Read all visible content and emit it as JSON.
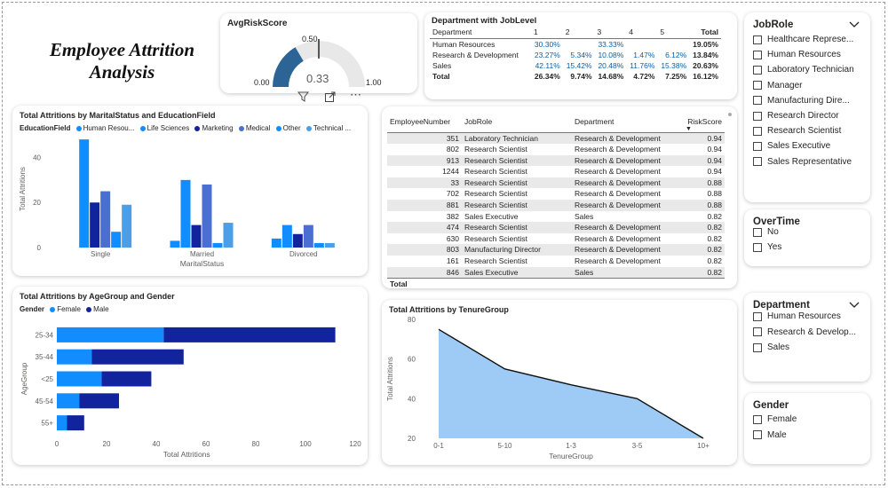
{
  "page_title": "Employee Attrition Analysis",
  "colors": {
    "accent": "#118dff",
    "navy": "#12239e",
    "steel": "#4a6fd1",
    "gauge": "#2c6496",
    "area": "#9ecbf5"
  },
  "gauge": {
    "title": "AvgRiskScore",
    "value": "0.33",
    "min": "0.00",
    "max": "1.00",
    "target": "0.50",
    "value_num": 0.33,
    "max_num": 1.0
  },
  "visual_header": {
    "filter_icon": "filter-icon",
    "focus_icon": "focus-mode-icon",
    "more_icon": "more-options-icon",
    "more_label": "⋯"
  },
  "matrix": {
    "title": "Department with JobLevel",
    "headers": [
      "Department",
      "1",
      "2",
      "3",
      "4",
      "5",
      "Total"
    ],
    "rows": [
      [
        "Human Resources",
        "30.30%",
        "",
        "33.33%",
        "",
        "",
        "19.05%"
      ],
      [
        "Research & Development",
        "23.27%",
        "5.34%",
        "10.08%",
        "1.47%",
        "6.12%",
        "13.84%"
      ],
      [
        "Sales",
        "42.11%",
        "15.42%",
        "20.48%",
        "11.76%",
        "15.38%",
        "20.63%"
      ]
    ],
    "total": [
      "Total",
      "26.34%",
      "9.74%",
      "14.68%",
      "4.72%",
      "7.25%",
      "16.12%"
    ]
  },
  "employee_table": {
    "headers": [
      "EmployeeNumber",
      "JobRole",
      "Department",
      "RiskScore"
    ],
    "rows": [
      [
        "351",
        "Laboratory Technician",
        "Research & Development",
        "0.94"
      ],
      [
        "802",
        "Research Scientist",
        "Research & Development",
        "0.94"
      ],
      [
        "913",
        "Research Scientist",
        "Research & Development",
        "0.94"
      ],
      [
        "1244",
        "Research Scientist",
        "Research & Development",
        "0.94"
      ],
      [
        "33",
        "Research Scientist",
        "Research & Development",
        "0.88"
      ],
      [
        "702",
        "Research Scientist",
        "Research & Development",
        "0.88"
      ],
      [
        "881",
        "Research Scientist",
        "Research & Development",
        "0.88"
      ],
      [
        "382",
        "Sales Executive",
        "Sales",
        "0.82"
      ],
      [
        "474",
        "Research Scientist",
        "Research & Development",
        "0.82"
      ],
      [
        "630",
        "Research Scientist",
        "Research & Development",
        "0.82"
      ],
      [
        "803",
        "Manufacturing Director",
        "Research & Development",
        "0.82"
      ],
      [
        "161",
        "Research Scientist",
        "Research & Development",
        "0.82"
      ],
      [
        "846",
        "Sales Executive",
        "Sales",
        "0.82"
      ]
    ],
    "total_label": "Total",
    "sort_icon": "sort-descending-icon"
  },
  "slicers": {
    "jobrole": {
      "title": "JobRole",
      "items": [
        "Healthcare Represe...",
        "Human Resources",
        "Laboratory Technician",
        "Manager",
        "Manufacturing Dire...",
        "Research Director",
        "Research Scientist",
        "Sales Executive",
        "Sales Representative"
      ]
    },
    "overtime": {
      "title": "OverTime",
      "items": [
        "No",
        "Yes"
      ]
    },
    "department": {
      "title": "Department",
      "items": [
        "Human Resources",
        "Research & Develop...",
        "Sales"
      ]
    },
    "gender": {
      "title": "Gender",
      "items": [
        "Female",
        "Male"
      ]
    }
  },
  "chart_data": [
    {
      "type": "bar",
      "title": "Total Attritions by MaritalStatus and EducationField",
      "legend_title": "EducationField",
      "legend_labels": [
        "Human Resou...",
        "Life Sciences",
        "Marketing",
        "Medical",
        "Other",
        "Technical ..."
      ],
      "categories": [
        "Single",
        "Married",
        "Divorced"
      ],
      "series": [
        {
          "name": "Human Resources",
          "color": "#118dff",
          "values": [
            0,
            3,
            4
          ]
        },
        {
          "name": "Life Sciences",
          "color": "#118dff",
          "values": [
            48,
            30,
            10
          ]
        },
        {
          "name": "Marketing",
          "color": "#12239e",
          "values": [
            20,
            10,
            6
          ]
        },
        {
          "name": "Medical",
          "color": "#4a6fd1",
          "values": [
            25,
            28,
            10
          ]
        },
        {
          "name": "Other",
          "color": "#118dff",
          "values": [
            7,
            2,
            2
          ]
        },
        {
          "name": "Technical Degree",
          "color": "#4a9fe8",
          "values": [
            19,
            11,
            2
          ]
        }
      ],
      "xlabel": "MaritalStatus",
      "ylabel": "Total Attritions",
      "ylim": [
        0,
        52
      ],
      "yticks": [
        0,
        20,
        40
      ],
      "legend_position": "top-left"
    },
    {
      "type": "bar",
      "orientation": "horizontal",
      "stacked": true,
      "title": "Total Attritions by AgeGroup and Gender",
      "legend_title": "Gender",
      "categories": [
        "25-34",
        "35-44",
        "<25",
        "45-54",
        "55+"
      ],
      "series": [
        {
          "name": "Female",
          "color": "#118dff",
          "values": [
            43,
            14,
            18,
            9,
            4
          ]
        },
        {
          "name": "Male",
          "color": "#12239e",
          "values": [
            69,
            37,
            20,
            16,
            7
          ]
        }
      ],
      "xlabel": "Total Attritions",
      "ylabel": "AgeGroup",
      "xlim": [
        0,
        120
      ],
      "xticks": [
        0,
        20,
        40,
        60,
        80,
        100,
        120
      ],
      "legend_position": "top-left"
    },
    {
      "type": "area",
      "title": "Total Attritions by TenureGroup",
      "categories": [
        "0-1",
        "5-10",
        "1-3",
        "3-5",
        "10+"
      ],
      "values": [
        75,
        55,
        47,
        40,
        20
      ],
      "xlabel": "TenureGroup",
      "ylabel": "Total Attritions",
      "ylim": [
        20,
        80
      ],
      "yticks": [
        20,
        40,
        60,
        80
      ]
    }
  ]
}
